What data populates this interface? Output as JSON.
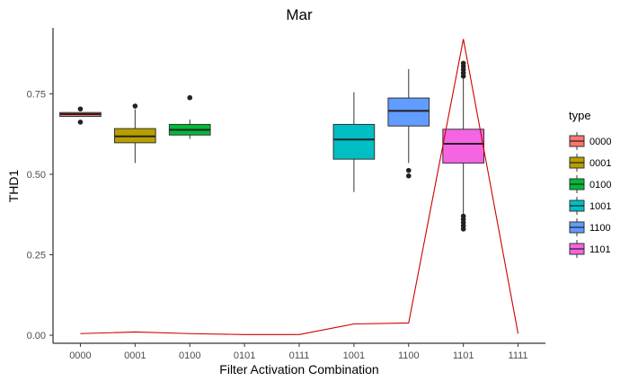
{
  "chart_data": {
    "type": "boxplot",
    "title": "Mar",
    "xlabel": "Filter Activation Combination",
    "ylabel": "THD1",
    "ylim": [
      -0.025,
      0.955
    ],
    "y_ticks": [
      0.0,
      0.25,
      0.5,
      0.75
    ],
    "y_tick_labels": [
      "0.00",
      "0.25",
      "0.50",
      "0.75"
    ],
    "categories": [
      "0000",
      "0001",
      "0100",
      "0101",
      "0111",
      "1001",
      "1100",
      "1101",
      "1111"
    ],
    "grid": false,
    "legend": {
      "title": "type",
      "placement": "right",
      "entries": [
        "0000",
        "0001",
        "0100",
        "1001",
        "1100",
        "1101"
      ]
    },
    "boxes": [
      {
        "category": "0000",
        "type": "0000",
        "color": "#F8766D",
        "whisker_low": 0.68,
        "q1": 0.68,
        "median": 0.687,
        "q3": 0.692,
        "whisker_high": 0.692,
        "outliers": [
          0.662,
          0.703
        ]
      },
      {
        "category": "0001",
        "type": "0001",
        "color": "#B79F00",
        "whisker_low": 0.535,
        "q1": 0.598,
        "median": 0.618,
        "q3": 0.642,
        "whisker_high": 0.702,
        "outliers": [
          0.712
        ]
      },
      {
        "category": "0100",
        "type": "0100",
        "color": "#00BA38",
        "whisker_low": 0.61,
        "q1": 0.622,
        "median": 0.638,
        "q3": 0.655,
        "whisker_high": 0.67,
        "outliers": [
          0.738
        ]
      },
      {
        "category": "1001",
        "type": "1001",
        "color": "#00BFC4",
        "whisker_low": 0.445,
        "q1": 0.547,
        "median": 0.608,
        "q3": 0.655,
        "whisker_high": 0.755,
        "outliers": []
      },
      {
        "category": "1100",
        "type": "1100",
        "color": "#619CFF",
        "whisker_low": 0.535,
        "q1": 0.65,
        "median": 0.697,
        "q3": 0.737,
        "whisker_high": 0.827,
        "outliers": [
          0.495,
          0.512
        ]
      },
      {
        "category": "1101",
        "type": "1101",
        "color": "#F564E3",
        "whisker_low": 0.375,
        "q1": 0.535,
        "median": 0.595,
        "q3": 0.64,
        "whisker_high": 0.8,
        "outliers": [
          0.33,
          0.34,
          0.35,
          0.36,
          0.37,
          0.805,
          0.815,
          0.825,
          0.835,
          0.845
        ]
      }
    ],
    "line_series": {
      "color": "#CC0000",
      "values": [
        0.005,
        0.01,
        0.005,
        0.002,
        0.002,
        0.035,
        0.038,
        0.92,
        0.005
      ]
    }
  }
}
